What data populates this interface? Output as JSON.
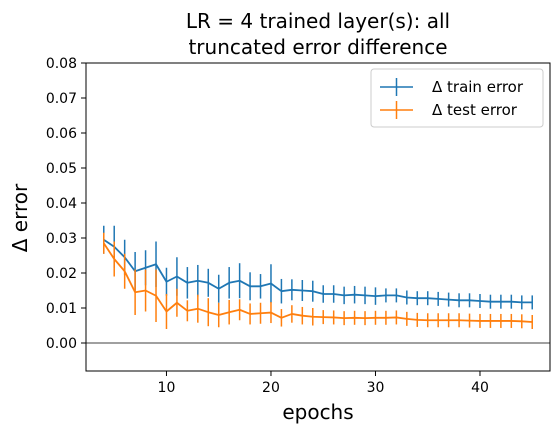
{
  "chart_data": {
    "type": "line",
    "title_line1": "LR = 4 trained layer(s): all",
    "title_line2": "truncated error difference",
    "xlabel": "epochs",
    "ylabel": "Δ error",
    "xlim": [
      2.3,
      46.7
    ],
    "ylim": [
      -0.008,
      0.08
    ],
    "x_ticks": [
      10,
      20,
      30,
      40
    ],
    "y_ticks": [
      0.0,
      0.01,
      0.02,
      0.03,
      0.04,
      0.05,
      0.06,
      0.07,
      0.08
    ],
    "y_tick_labels": [
      "0.00",
      "0.01",
      "0.02",
      "0.03",
      "0.04",
      "0.05",
      "0.06",
      "0.07",
      "0.08"
    ],
    "reference_line": {
      "y": 0.0,
      "color": "#808080"
    },
    "legend_position": "top-right",
    "grid": false,
    "x": [
      4,
      5,
      6,
      7,
      8,
      9,
      10,
      11,
      12,
      13,
      14,
      15,
      16,
      17,
      18,
      19,
      20,
      21,
      22,
      23,
      24,
      25,
      26,
      27,
      28,
      29,
      30,
      31,
      32,
      33,
      34,
      35,
      36,
      37,
      38,
      39,
      40,
      41,
      42,
      43,
      44,
      45
    ],
    "series": [
      {
        "name": "Δ train error",
        "color": "#1f77b4",
        "values": [
          0.0295,
          0.0275,
          0.0245,
          0.0205,
          0.0215,
          0.0225,
          0.0175,
          0.019,
          0.0172,
          0.0178,
          0.0172,
          0.0155,
          0.0172,
          0.0178,
          0.0162,
          0.0162,
          0.017,
          0.0148,
          0.0152,
          0.015,
          0.0148,
          0.014,
          0.014,
          0.0136,
          0.0138,
          0.0136,
          0.0134,
          0.0136,
          0.0136,
          0.013,
          0.0128,
          0.0128,
          0.0126,
          0.0124,
          0.0122,
          0.0122,
          0.012,
          0.0118,
          0.0118,
          0.0118,
          0.0116,
          0.0116
        ],
        "errors": [
          0.004,
          0.006,
          0.005,
          0.0055,
          0.005,
          0.0065,
          0.004,
          0.0055,
          0.0045,
          0.0045,
          0.004,
          0.004,
          0.0045,
          0.005,
          0.004,
          0.0035,
          0.0055,
          0.0035,
          0.003,
          0.003,
          0.003,
          0.0025,
          0.0025,
          0.0025,
          0.0025,
          0.0025,
          0.0025,
          0.002,
          0.002,
          0.002,
          0.002,
          0.002,
          0.002,
          0.002,
          0.002,
          0.002,
          0.002,
          0.002,
          0.002,
          0.002,
          0.002,
          0.002
        ]
      },
      {
        "name": "Δ test error",
        "color": "#ff7f0e",
        "values": [
          0.0285,
          0.024,
          0.0205,
          0.0145,
          0.015,
          0.0135,
          0.009,
          0.0115,
          0.0092,
          0.0098,
          0.0088,
          0.008,
          0.0088,
          0.0095,
          0.0083,
          0.0085,
          0.0087,
          0.0072,
          0.0083,
          0.0078,
          0.0075,
          0.0074,
          0.0073,
          0.0071,
          0.0072,
          0.0071,
          0.0072,
          0.0072,
          0.0073,
          0.0069,
          0.0066,
          0.0065,
          0.0065,
          0.0065,
          0.0065,
          0.0064,
          0.0063,
          0.0063,
          0.0063,
          0.0063,
          0.0062,
          0.006
        ],
        "errors": [
          0.003,
          0.005,
          0.005,
          0.0065,
          0.006,
          0.0075,
          0.005,
          0.004,
          0.003,
          0.004,
          0.004,
          0.0035,
          0.0035,
          0.003,
          0.003,
          0.003,
          0.003,
          0.0025,
          0.0025,
          0.0025,
          0.0025,
          0.002,
          0.002,
          0.002,
          0.002,
          0.002,
          0.002,
          0.002,
          0.002,
          0.002,
          0.002,
          0.002,
          0.002,
          0.002,
          0.002,
          0.002,
          0.002,
          0.002,
          0.002,
          0.002,
          0.002,
          0.002
        ]
      }
    ]
  }
}
